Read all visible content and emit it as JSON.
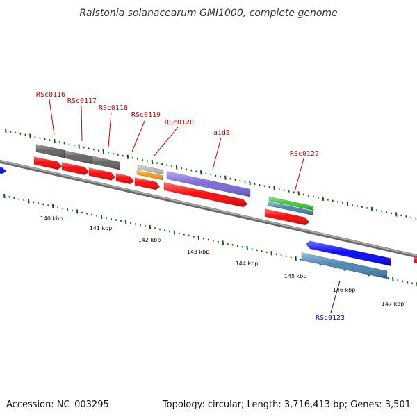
{
  "title": "Ralstonia solanacearum GMI1000, complete genome",
  "footer": {
    "accession": "Accession: NC_003295",
    "summary": "Topology: circular; Length: 3,716,413 bp; Genes: 3,501"
  },
  "scale": {
    "tick_labels": [
      "140 kbp",
      "141 kbp",
      "142 kbp",
      "143 kbp",
      "144 kbp",
      "145 kbp",
      "146 kbp",
      "147 kbp"
    ],
    "tick_color": "#006400",
    "backbone_color": "#808080"
  },
  "genes": [
    {
      "label": "RSc0116",
      "color": "#cc0000"
    },
    {
      "label": "RSc0117",
      "color": "#cc0000"
    },
    {
      "label": "RSc0118",
      "color": "#cc0000"
    },
    {
      "label": "RSc0119",
      "color": "#cc0000"
    },
    {
      "label": "RSc0120",
      "color": "#cc0000"
    },
    {
      "label": "aidB",
      "color": "#cc0000"
    },
    {
      "label": "RSc0122",
      "color": "#cc0000"
    },
    {
      "label": "RSc0123",
      "color": "#0000aa"
    }
  ],
  "feature_colors": {
    "gene_gray": "#606060",
    "cds_red": "#ff0000",
    "light_gray": "#bbbbbb",
    "orange": "#ff9900",
    "purple": "#7766dd",
    "green": "#33cc33",
    "steelblue": "#4682b4",
    "blue": "#0000ff"
  }
}
